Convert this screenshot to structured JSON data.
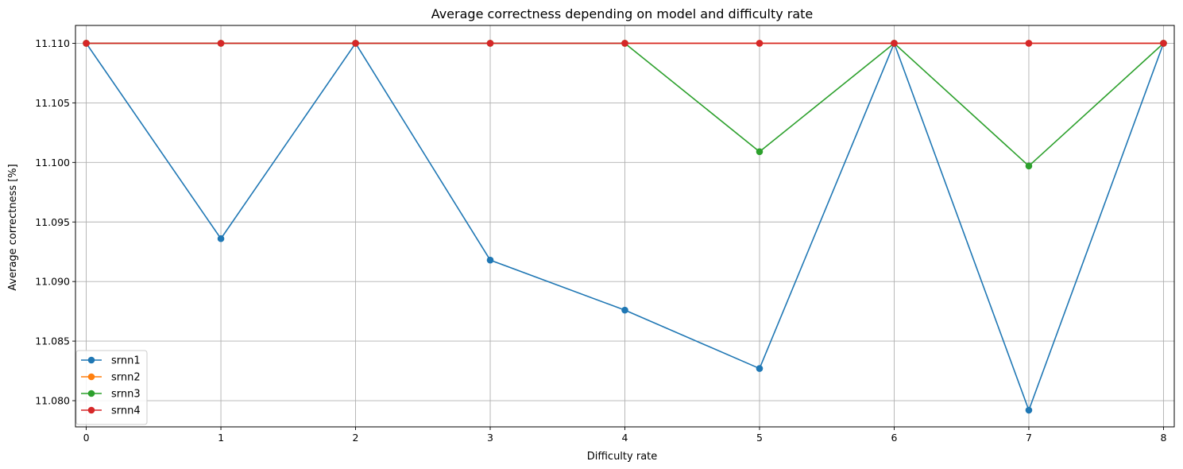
{
  "chart_data": {
    "type": "line",
    "title": "Average correctness depending on model and difficulty rate",
    "xlabel": "Difficulty rate",
    "ylabel": "Average correctness [%]",
    "x": [
      0,
      1,
      2,
      3,
      4,
      5,
      6,
      7,
      8
    ],
    "xticks": [
      "0",
      "1",
      "2",
      "3",
      "4",
      "5",
      "6",
      "7",
      "8"
    ],
    "yticks": [
      "11.080",
      "11.085",
      "11.090",
      "11.095",
      "11.100",
      "11.105",
      "11.110"
    ],
    "ytick_values": [
      11.08,
      11.085,
      11.09,
      11.095,
      11.1,
      11.105,
      11.11
    ],
    "xlim": [
      -0.08,
      8.08
    ],
    "ylim": [
      11.0778,
      11.1115
    ],
    "grid": true,
    "legend_position": "lower-left",
    "series": [
      {
        "name": "srnn1",
        "color": "#1f77b4",
        "values": [
          11.11,
          11.0936,
          11.11,
          11.0918,
          11.0876,
          11.0827,
          11.11,
          11.0792,
          11.11
        ]
      },
      {
        "name": "srnn2",
        "color": "#ff7f0e",
        "values": [
          11.11,
          11.11,
          11.11,
          11.11,
          11.11,
          11.11,
          11.11,
          11.11,
          11.11
        ]
      },
      {
        "name": "srnn3",
        "color": "#2ca02c",
        "values": [
          11.11,
          11.11,
          11.11,
          11.11,
          11.11,
          11.1009,
          11.11,
          11.0997,
          11.11
        ]
      },
      {
        "name": "srnn4",
        "color": "#d62728",
        "values": [
          11.11,
          11.11,
          11.11,
          11.11,
          11.11,
          11.11,
          11.11,
          11.11,
          11.11
        ]
      }
    ]
  }
}
